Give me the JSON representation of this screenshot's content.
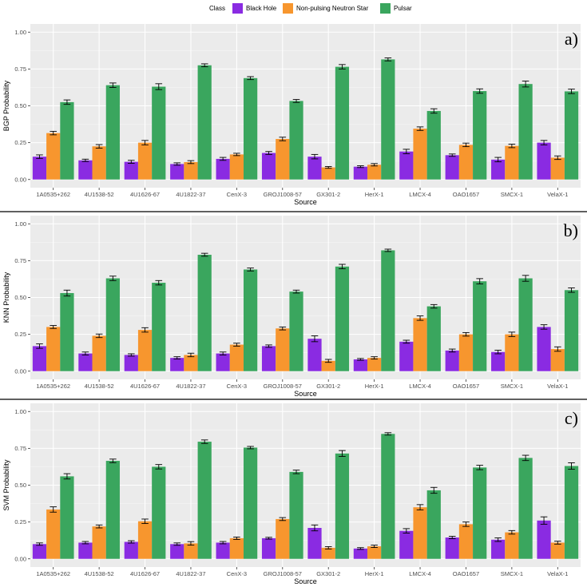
{
  "legend": {
    "title": "Class",
    "items": [
      {
        "label": "Black Hole",
        "color": "#8a2be2"
      },
      {
        "label": "Non-pulsing Neutron Star",
        "color": "#f7962e"
      },
      {
        "label": "Pulsar",
        "color": "#3aa65e"
      }
    ]
  },
  "chart_data": [
    {
      "type": "bar",
      "panel_label": "a)",
      "xlabel": "Source",
      "ylabel": "BGP Probability",
      "ylim": [
        0,
        1
      ],
      "yticks": [
        "0.00",
        "0.25",
        "0.50",
        "0.75",
        "1.00"
      ],
      "categories": [
        "1A0535+262",
        "4U1538-52",
        "4U1626-67",
        "4U1822-37",
        "CenX-3",
        "GROJ1008-57",
        "GX301-2",
        "HerX-1",
        "LMCX-4",
        "OAO1657",
        "SMCX-1",
        "VelaX-1"
      ],
      "series": [
        {
          "name": "Black Hole",
          "values": [
            0.155,
            0.13,
            0.12,
            0.105,
            0.14,
            0.18,
            0.155,
            0.087,
            0.19,
            0.165,
            0.135,
            0.25
          ],
          "errors": [
            0.012,
            0.008,
            0.01,
            0.008,
            0.01,
            0.01,
            0.015,
            0.006,
            0.015,
            0.008,
            0.015,
            0.015
          ]
        },
        {
          "name": "Non-pulsing Neutron Star",
          "values": [
            0.315,
            0.225,
            0.25,
            0.118,
            0.17,
            0.275,
            0.082,
            0.1,
            0.345,
            0.235,
            0.228,
            0.148
          ],
          "errors": [
            0.012,
            0.012,
            0.015,
            0.01,
            0.008,
            0.012,
            0.006,
            0.008,
            0.012,
            0.012,
            0.012,
            0.012
          ]
        },
        {
          "name": "Pulsar",
          "values": [
            0.525,
            0.64,
            0.63,
            0.775,
            0.688,
            0.533,
            0.765,
            0.815,
            0.465,
            0.6,
            0.648,
            0.598
          ],
          "errors": [
            0.015,
            0.015,
            0.02,
            0.01,
            0.01,
            0.01,
            0.015,
            0.01,
            0.015,
            0.015,
            0.02,
            0.015
          ]
        }
      ]
    },
    {
      "type": "bar",
      "panel_label": "b)",
      "xlabel": "Source",
      "ylabel": "KNN Probability",
      "ylim": [
        0,
        1
      ],
      "yticks": [
        "0.00",
        "0.25",
        "0.50",
        "0.75",
        "1.00"
      ],
      "categories": [
        "1A0535+262",
        "4U1538-52",
        "4U1626-67",
        "4U1822-37",
        "CenX-3",
        "GROJ1008-57",
        "GX301-2",
        "HerX-1",
        "LMCX-4",
        "OAO1657",
        "SMCX-1",
        "VelaX-1"
      ],
      "series": [
        {
          "name": "Black Hole",
          "values": [
            0.17,
            0.12,
            0.11,
            0.09,
            0.12,
            0.17,
            0.22,
            0.08,
            0.2,
            0.14,
            0.13,
            0.3
          ],
          "errors": [
            0.015,
            0.01,
            0.008,
            0.008,
            0.01,
            0.008,
            0.02,
            0.006,
            0.01,
            0.01,
            0.012,
            0.015
          ]
        },
        {
          "name": "Non-pulsing Neutron Star",
          "values": [
            0.3,
            0.24,
            0.28,
            0.11,
            0.18,
            0.29,
            0.07,
            0.09,
            0.36,
            0.25,
            0.25,
            0.15
          ],
          "errors": [
            0.01,
            0.012,
            0.015,
            0.012,
            0.01,
            0.01,
            0.01,
            0.008,
            0.015,
            0.012,
            0.015,
            0.015
          ]
        },
        {
          "name": "Pulsar",
          "values": [
            0.53,
            0.63,
            0.6,
            0.79,
            0.69,
            0.54,
            0.71,
            0.82,
            0.44,
            0.61,
            0.63,
            0.55
          ],
          "errors": [
            0.02,
            0.015,
            0.015,
            0.01,
            0.01,
            0.01,
            0.015,
            0.008,
            0.012,
            0.018,
            0.02,
            0.015
          ]
        }
      ]
    },
    {
      "type": "bar",
      "panel_label": "c)",
      "xlabel": "Source",
      "ylabel": "SVM Probability",
      "ylim": [
        0,
        1
      ],
      "yticks": [
        "0.00",
        "0.25",
        "0.50",
        "0.75",
        "1.00"
      ],
      "categories": [
        "1A0535+262",
        "4U1538-52",
        "4U1626-67",
        "4U1822-37",
        "CenX-3",
        "GROJ1008-57",
        "GX301-2",
        "HerX-1",
        "LMCX-4",
        "OAO1657",
        "SMCX-1",
        "VelaX-1"
      ],
      "series": [
        {
          "name": "Black Hole",
          "values": [
            0.1,
            0.11,
            0.115,
            0.1,
            0.11,
            0.14,
            0.21,
            0.07,
            0.19,
            0.145,
            0.13,
            0.26
          ],
          "errors": [
            0.008,
            0.008,
            0.008,
            0.008,
            0.008,
            0.006,
            0.02,
            0.006,
            0.015,
            0.008,
            0.012,
            0.025
          ]
        },
        {
          "name": "Non-pulsing Neutron Star",
          "values": [
            0.335,
            0.22,
            0.255,
            0.105,
            0.14,
            0.27,
            0.075,
            0.085,
            0.35,
            0.235,
            0.18,
            0.11
          ],
          "errors": [
            0.018,
            0.01,
            0.015,
            0.012,
            0.008,
            0.01,
            0.008,
            0.008,
            0.018,
            0.015,
            0.012,
            0.01
          ]
        },
        {
          "name": "Pulsar",
          "values": [
            0.56,
            0.665,
            0.625,
            0.795,
            0.755,
            0.59,
            0.715,
            0.848,
            0.465,
            0.62,
            0.685,
            0.63
          ],
          "errors": [
            0.018,
            0.012,
            0.015,
            0.012,
            0.008,
            0.012,
            0.02,
            0.008,
            0.02,
            0.015,
            0.018,
            0.022
          ]
        }
      ]
    }
  ]
}
